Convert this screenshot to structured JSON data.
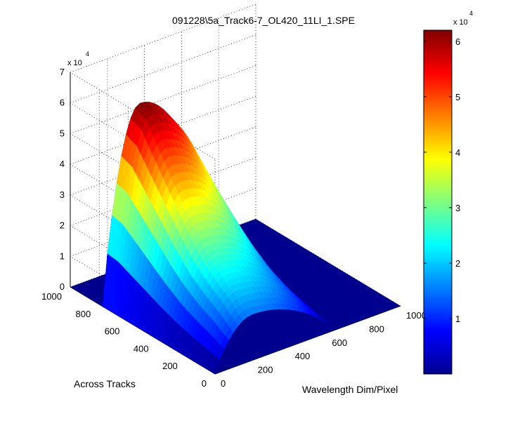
{
  "chart_data": {
    "type": "surface",
    "title": "091228\\5a_Track6-7_OL420_11LI_1.SPE",
    "xlabel": "Wavelength Dim/Pixel",
    "ylabel": "Across Tracks",
    "zlabel": "",
    "z_multiplier": "x 10",
    "z_multiplier_exp": "4",
    "xlim": [
      0,
      1000
    ],
    "ylim": [
      0,
      1000
    ],
    "zlim": [
      0,
      70000
    ],
    "xticks": [
      "0",
      "200",
      "400",
      "600",
      "800",
      "1000"
    ],
    "yticks": [
      "0",
      "200",
      "400",
      "600",
      "800",
      "1000"
    ],
    "zticks": [
      "0",
      "1",
      "2",
      "3",
      "4",
      "5",
      "6",
      "7"
    ],
    "grid": true,
    "colormap": "jet",
    "colorbar": {
      "range": [
        0,
        62000
      ],
      "ticks": [
        "1",
        "2",
        "3",
        "4",
        "5",
        "6"
      ],
      "multiplier": "x 10",
      "multiplier_exp": "4"
    },
    "surface": {
      "description_of_profile": "signal spans wavelength pixels 0-~650 and across-track rows ~0-~780; peak near pixel ~200",
      "wavelength_extent": [
        0,
        650
      ],
      "track_extent": [
        0,
        780
      ],
      "peak_wavelength": 200,
      "track_profile": [
        {
          "track": 0,
          "peak": 15000
        },
        {
          "track": 100,
          "peak": 20000
        },
        {
          "track": 200,
          "peak": 24000
        },
        {
          "track": 300,
          "peak": 29000
        },
        {
          "track": 400,
          "peak": 36000
        },
        {
          "track": 500,
          "peak": 44000
        },
        {
          "track": 600,
          "peak": 52000
        },
        {
          "track": 700,
          "peak": 60000
        },
        {
          "track": 780,
          "peak": 62000
        }
      ]
    }
  }
}
